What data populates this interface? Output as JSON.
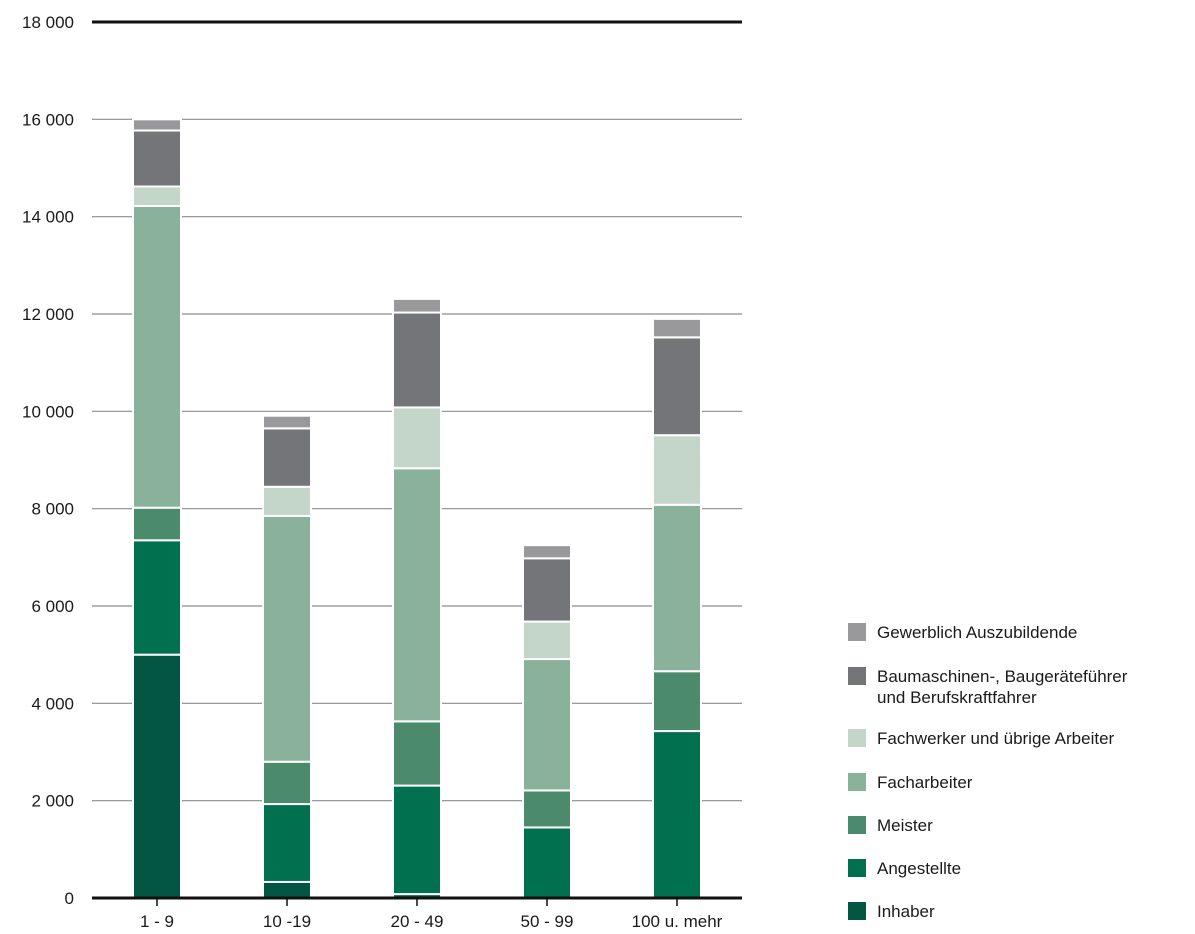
{
  "chart_data": {
    "type": "bar",
    "stacked": true,
    "categories": [
      "1 - 9",
      "10 -19",
      "20 - 49",
      "50 - 99",
      "100 u. mehr"
    ],
    "ylim": [
      0,
      18000
    ],
    "yticks": [
      0,
      2000,
      4000,
      6000,
      8000,
      10000,
      12000,
      14000,
      16000,
      18000
    ],
    "ytick_labels": [
      "0",
      "2 000",
      "4 000",
      "6 000",
      "8 000",
      "10 000",
      "12 000",
      "14 000",
      "16 000",
      "18 000"
    ],
    "grid": true,
    "legend_position": "right",
    "series": [
      {
        "name": "Inhaber",
        "color": "#035641",
        "values": [
          5000,
          330,
          80,
          10,
          10
        ]
      },
      {
        "name": "Angestellte",
        "color": "#00704f",
        "values": [
          2350,
          1600,
          2230,
          1440,
          3420
        ]
      },
      {
        "name": "Meister",
        "color": "#4c8a6c",
        "values": [
          670,
          870,
          1320,
          760,
          1230
        ]
      },
      {
        "name": "Facharbeiter",
        "color": "#8ab19a",
        "values": [
          6200,
          5050,
          5200,
          2700,
          3420
        ]
      },
      {
        "name": "Fachwerker und übrige Arbeiter",
        "color": "#c4d5ca",
        "values": [
          400,
          600,
          1250,
          770,
          1430
        ]
      },
      {
        "name": "Baumaschinen-, Baugeräteführer\n und Berufskraftfahrer",
        "color": "#747578",
        "values": [
          1150,
          1200,
          1950,
          1300,
          2010
        ]
      },
      {
        "name": "Gewerblich Auszubildende",
        "color": "#99999b",
        "values": [
          230,
          260,
          280,
          270,
          380
        ]
      }
    ]
  }
}
